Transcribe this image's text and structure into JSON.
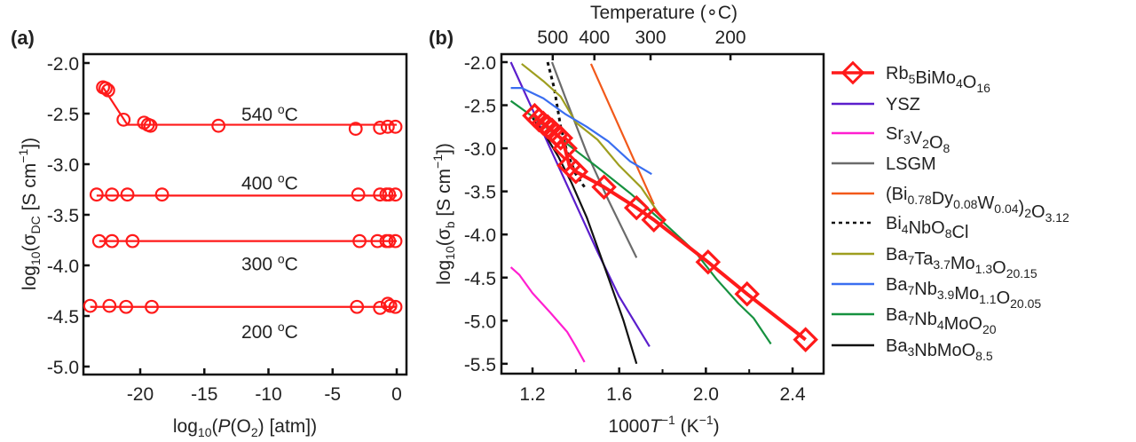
{
  "figure": {
    "panel_a_label": "(a)",
    "panel_b_label": "(b)"
  },
  "chart_data": [
    {
      "type": "scatter",
      "panel": "a",
      "title": "",
      "xlabel": "log10(P(O2) [atm])",
      "ylabel": "log10(σDC [S cm−1])",
      "xlim": [
        -24.5,
        0.8
      ],
      "ylim": [
        -5.1,
        -1.9
      ],
      "xticks": [
        -20,
        -15,
        -10,
        -5,
        0
      ],
      "xtick_labels": [
        "-20",
        "-15",
        "-10",
        "-5",
        "0"
      ],
      "yticks": [
        -2.0,
        -2.5,
        -3.0,
        -3.5,
        -4.0,
        -4.5,
        -5.0
      ],
      "ytick_labels": [
        "-2.0",
        "-2.5",
        "-3.0",
        "-3.5",
        "-4.0",
        "-4.5",
        "-5.0"
      ],
      "grid": false,
      "color": "#ff1a1a",
      "series": [
        {
          "name": "540 °C",
          "label_text": "540 ºC",
          "x": [
            -22.9,
            -22.7,
            -22.5,
            -21.3,
            -19.7,
            -19.4,
            -19.2,
            -13.9,
            -3.2,
            -1.3,
            -0.7,
            -0.1
          ],
          "y": [
            -2.24,
            -2.25,
            -2.27,
            -2.56,
            -2.59,
            -2.61,
            -2.62,
            -2.62,
            -2.65,
            -2.64,
            -2.63,
            -2.63
          ],
          "fit_x": [
            -22.9,
            -21.0,
            0
          ],
          "fit_y": [
            -2.24,
            -2.61,
            -2.61
          ]
        },
        {
          "name": "400 °C",
          "label_text": "400 ºC",
          "x": [
            -23.4,
            -22.2,
            -21.0,
            -18.3,
            -3.0,
            -1.3,
            -0.8,
            -0.6,
            -0.1
          ],
          "y": [
            -3.3,
            -3.3,
            -3.3,
            -3.3,
            -3.3,
            -3.3,
            -3.3,
            -3.3,
            -3.3
          ],
          "fit_x": [
            -23.4,
            0
          ],
          "fit_y": [
            -3.31,
            -3.31
          ]
        },
        {
          "name": "300 °C",
          "label_text": "300 ºC",
          "x": [
            -23.2,
            -22.2,
            -20.6,
            -2.9,
            -1.5,
            -0.8,
            -0.6,
            -0.1
          ],
          "y": [
            -3.76,
            -3.76,
            -3.76,
            -3.76,
            -3.76,
            -3.76,
            -3.76,
            -3.76
          ],
          "fit_x": [
            -23.2,
            0
          ],
          "fit_y": [
            -3.76,
            -3.76
          ]
        },
        {
          "name": "200 °C",
          "label_text": "200 ºC",
          "x": [
            -23.9,
            -22.4,
            -21.1,
            -19.1,
            -3.1,
            -1.3,
            -0.7,
            -0.5,
            -0.1
          ],
          "y": [
            -4.4,
            -4.4,
            -4.41,
            -4.41,
            -4.41,
            -4.42,
            -4.38,
            -4.4,
            -4.41
          ],
          "fit_x": [
            -23.9,
            0
          ],
          "fit_y": [
            -4.41,
            -4.41
          ]
        }
      ]
    },
    {
      "type": "line",
      "panel": "b",
      "title": "",
      "xlabel": "1000T−1 (K−1)",
      "ylabel": "log10(σb [S cm−1])",
      "top_xlabel": "Temperature (°C)",
      "top_xticks_celsius": [
        500,
        400,
        300,
        200
      ],
      "top_xtick_labels": [
        "500",
        "400",
        "300",
        "200"
      ],
      "xlim": [
        1.08,
        2.58
      ],
      "ylim": [
        -5.65,
        -1.9
      ],
      "xticks": [
        1.2,
        1.6,
        2.0,
        2.4
      ],
      "xtick_labels": [
        "1.2",
        "1.6",
        "2.0",
        "2.4"
      ],
      "minor_xticks": [
        1.4,
        1.8,
        2.2
      ],
      "yticks": [
        -2.0,
        -2.5,
        -3.0,
        -3.5,
        -4.0,
        -4.5,
        -5.0,
        -5.5
      ],
      "ytick_labels": [
        "-2.0",
        "-2.5",
        "-3.0",
        "-3.5",
        "-4.0",
        "-4.5",
        "-5.0",
        "-5.5"
      ],
      "grid": false,
      "legend_position": "right-outside",
      "series": [
        {
          "name": "Rb5BiMo4O16",
          "legend": {
            "base": [
              "Rb",
              "Bi",
              "Mo",
              "O"
            ],
            "subs": [
              "5",
              "",
              "4",
              "16"
            ]
          },
          "color": "#ff1a1a",
          "marker": "diamond-square",
          "x": [
            1.21,
            1.23,
            1.25,
            1.27,
            1.29,
            1.31,
            1.33,
            1.35,
            1.37,
            1.4,
            1.53,
            1.68,
            1.76,
            2.01,
            2.19,
            2.46
          ],
          "y": [
            -2.62,
            -2.67,
            -2.71,
            -2.75,
            -2.79,
            -2.84,
            -2.88,
            -3.0,
            -3.2,
            -3.27,
            -3.45,
            -3.69,
            -3.83,
            -4.32,
            -4.69,
            -5.22
          ]
        },
        {
          "name": "YSZ",
          "legend": {
            "base": [
              "YSZ"
            ],
            "subs": [
              ""
            ]
          },
          "color": "#5b1ecc",
          "x": [
            1.1,
            1.2,
            1.3,
            1.4,
            1.5,
            1.6,
            1.74
          ],
          "y": [
            -2.0,
            -2.55,
            -3.1,
            -3.65,
            -4.2,
            -4.72,
            -5.3
          ]
        },
        {
          "name": "Sr3V2O8",
          "legend": {
            "base": [
              "Sr",
              "V",
              "O"
            ],
            "subs": [
              "3",
              "2",
              "8"
            ]
          },
          "color": "#ff1fd0",
          "x": [
            1.1,
            1.14,
            1.2,
            1.28,
            1.36,
            1.4,
            1.44
          ],
          "y": [
            -4.38,
            -4.47,
            -4.68,
            -4.9,
            -5.13,
            -5.3,
            -5.48
          ]
        },
        {
          "name": "LSGM",
          "legend": {
            "base": [
              "LSGM"
            ],
            "subs": [
              ""
            ]
          },
          "color": "#6b6b6b",
          "x": [
            1.29,
            1.35,
            1.45,
            1.55,
            1.68
          ],
          "y": [
            -2.0,
            -2.4,
            -3.05,
            -3.6,
            -4.27
          ]
        },
        {
          "name": "(Bi0.78Dy0.08W0.04)2O3.12",
          "legend": {
            "base": [
              "(Bi",
              "Dy",
              "W",
              ")",
              "O"
            ],
            "subs": [
              "0.78",
              "0.08",
              "0.04",
              "2",
              "3.12"
            ]
          },
          "color": "#f2591a",
          "x": [
            1.47,
            1.76
          ],
          "y": [
            -2.02,
            -3.65
          ]
        },
        {
          "name": "Bi4NbO8Cl",
          "legend": {
            "base": [
              "Bi",
              "NbO",
              "Cl"
            ],
            "subs": [
              "4",
              "8",
              ""
            ]
          },
          "color": "#111111",
          "dashed": true,
          "x": [
            1.27,
            1.3,
            1.33,
            1.36,
            1.4,
            1.44
          ],
          "y": [
            -2.0,
            -2.3,
            -2.75,
            -3.05,
            -3.3,
            -3.45
          ]
        },
        {
          "name": "Ba7Ta3.7Mo1.3O20.15",
          "legend": {
            "base": [
              "Ba",
              "Ta",
              "Mo",
              "O"
            ],
            "subs": [
              "7",
              "3.7",
              "1.3",
              "20.15"
            ]
          },
          "color": "#9e9e1f",
          "x": [
            1.15,
            1.25,
            1.33,
            1.4,
            1.5,
            1.6,
            1.7,
            1.8
          ],
          "y": [
            -2.02,
            -2.22,
            -2.4,
            -2.7,
            -2.9,
            -3.2,
            -3.45,
            -3.82
          ]
        },
        {
          "name": "Ba7Nb3.9Mo1.1O20.05",
          "legend": {
            "base": [
              "Ba",
              "Nb",
              "Mo",
              "O"
            ],
            "subs": [
              "7",
              "3.9",
              "1.1",
              "20.05"
            ]
          },
          "color": "#3a6ef0",
          "x": [
            1.1,
            1.15,
            1.25,
            1.35,
            1.45,
            1.55,
            1.65,
            1.75
          ],
          "y": [
            -2.3,
            -2.3,
            -2.42,
            -2.6,
            -2.75,
            -2.92,
            -3.15,
            -3.3
          ]
        },
        {
          "name": "Ba7Nb4MoO20",
          "legend": {
            "base": [
              "Ba",
              "Nb",
              "MoO"
            ],
            "subs": [
              "7",
              "4",
              "20"
            ]
          },
          "color": "#16913f",
          "x": [
            1.1,
            1.2,
            1.35,
            1.5,
            1.65,
            1.8,
            1.95,
            2.05,
            2.15,
            2.22,
            2.3
          ],
          "y": [
            -2.45,
            -2.63,
            -2.93,
            -3.22,
            -3.52,
            -3.85,
            -4.2,
            -4.52,
            -4.8,
            -4.97,
            -5.27
          ]
        },
        {
          "name": "Ba3NbMoO8.5",
          "legend": {
            "base": [
              "Ba",
              "NbMoO"
            ],
            "subs": [
              "3",
              "8.5"
            ]
          },
          "color": "#111111",
          "x": [
            1.2,
            1.26,
            1.32,
            1.38,
            1.45,
            1.55,
            1.62,
            1.68
          ],
          "y": [
            -2.65,
            -2.85,
            -3.1,
            -3.4,
            -3.8,
            -4.5,
            -5.0,
            -5.5
          ]
        }
      ]
    }
  ],
  "panel_a_text": {
    "ylabel_main": "log",
    "ylabel_sub": "10",
    "ylabel_rest1": "(σ",
    "ylabel_sub2": "DC",
    "ylabel_rest2": " [S cm",
    "ylabel_sup": "−1",
    "ylabel_rest3": "])",
    "xlabel_main": "log",
    "xlabel_sub": "10",
    "xlabel_rest1": "(",
    "xlabel_italic": "P",
    "xlabel_rest2": "(O",
    "xlabel_sub2": "2",
    "xlabel_rest3": ") [atm])"
  },
  "panel_b_text": {
    "ylabel_main": "log",
    "ylabel_sub": "10",
    "ylabel_rest1": "(σ",
    "ylabel_sub2": "b",
    "ylabel_rest2": " [S cm",
    "ylabel_sup": "−1",
    "ylabel_rest3": "])",
    "xlabel_pre": "1000",
    "xlabel_italic": "T",
    "xlabel_sup": "−1",
    "xlabel_rest": " (K",
    "xlabel_sup2": "−1",
    "xlabel_end": ")",
    "top_label": "Temperature (∘C)"
  }
}
